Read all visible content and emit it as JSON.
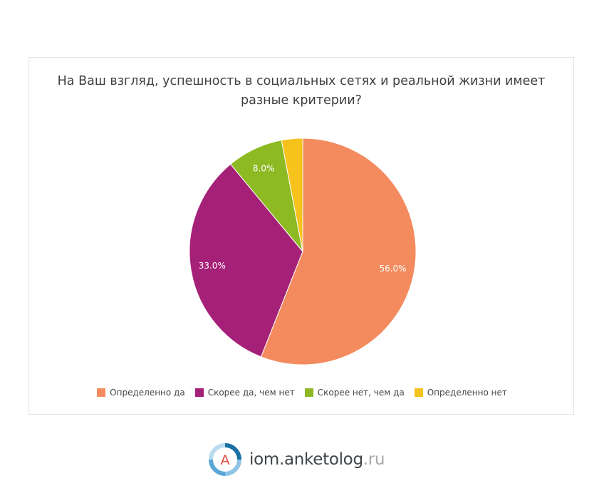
{
  "chart_data": {
    "type": "pie",
    "title": "На Ваш взгляд, успешность в социальных сетях и реальной жизни имеет разные критерии?",
    "categories": [
      "Определенно да",
      "Скорее да, чем нет",
      "Скорее нет, чем да",
      "Определенно нет"
    ],
    "values": [
      56.0,
      33.0,
      8.0,
      3.0
    ],
    "labels": [
      "56.0%",
      "33.0%",
      "8.0%",
      ""
    ],
    "colors": [
      "#f48b5e",
      "#a52077",
      "#8db923",
      "#f6c21c"
    ],
    "legend_position": "bottom",
    "start_angle": "top",
    "direction": "clockwise"
  },
  "branding": {
    "logo_letter": "A",
    "site_main": "iom.anketolog",
    "site_tld": ".ru"
  }
}
